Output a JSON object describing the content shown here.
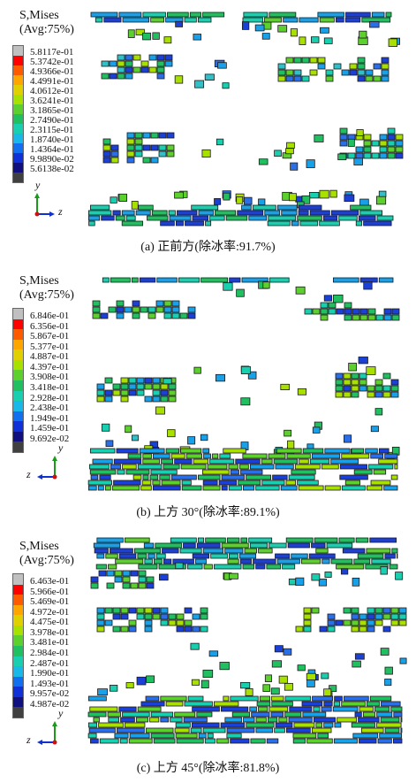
{
  "panels": [
    {
      "id": "a",
      "legend": {
        "title": "S,Mises",
        "subtitle": "(Avg:75%)",
        "values": [
          "5.8117e-01",
          "5.3742e-01",
          "4.9366e-01",
          "4.4991e-01",
          "4.0612e-01",
          "3.6241e-01",
          "3.1865e-01",
          "2.7490e-01",
          "2.3115e-01",
          "1.8740e-01",
          "1.4364e-01",
          "9.9890e-02",
          "5.6138e-02"
        ]
      },
      "axes": {
        "up": "y",
        "side": "z"
      },
      "caption": "(a) 正前方(除冰率:91.7%)"
    },
    {
      "id": "b",
      "legend": {
        "title": "S,Mises",
        "subtitle": "(Avg:75%)",
        "values": [
          "6.846e-01",
          "6.356e-01",
          "5.867e-01",
          "5.377e-01",
          "4.887e-01",
          "4.397e-01",
          "3.908e-01",
          "3.418e-01",
          "2.928e-01",
          "2.438e-01",
          "1.949e-01",
          "1.459e-01",
          "9.692e-02"
        ]
      },
      "axes": {
        "up": "y",
        "side": "z"
      },
      "caption": "(b) 上方 30°(除冰率:89.1%)"
    },
    {
      "id": "c",
      "legend": {
        "title": "S,Mises",
        "subtitle": "(Avg:75%)",
        "values": [
          "6.463e-01",
          "5.966e-01",
          "5.469e-01",
          "4.972e-01",
          "4.475e-01",
          "3.978e-01",
          "3.481e-01",
          "2.984e-01",
          "2.487e-01",
          "1.990e-01",
          "1.493e-01",
          "9.957e-02",
          "4.987e-02"
        ]
      },
      "axes": {
        "up": "y",
        "side": "z"
      },
      "caption": "(c) 上方 45°(除冰率:81.8%)"
    }
  ],
  "colors": {
    "scale": [
      "#c0c0c0",
      "#ff0000",
      "#ff5a00",
      "#ffa500",
      "#e0d000",
      "#a8e000",
      "#5cd02c",
      "#20c060",
      "#18d0b0",
      "#18b8e8",
      "#1070f0",
      "#1030d8",
      "#101080",
      "#404040"
    ]
  }
}
